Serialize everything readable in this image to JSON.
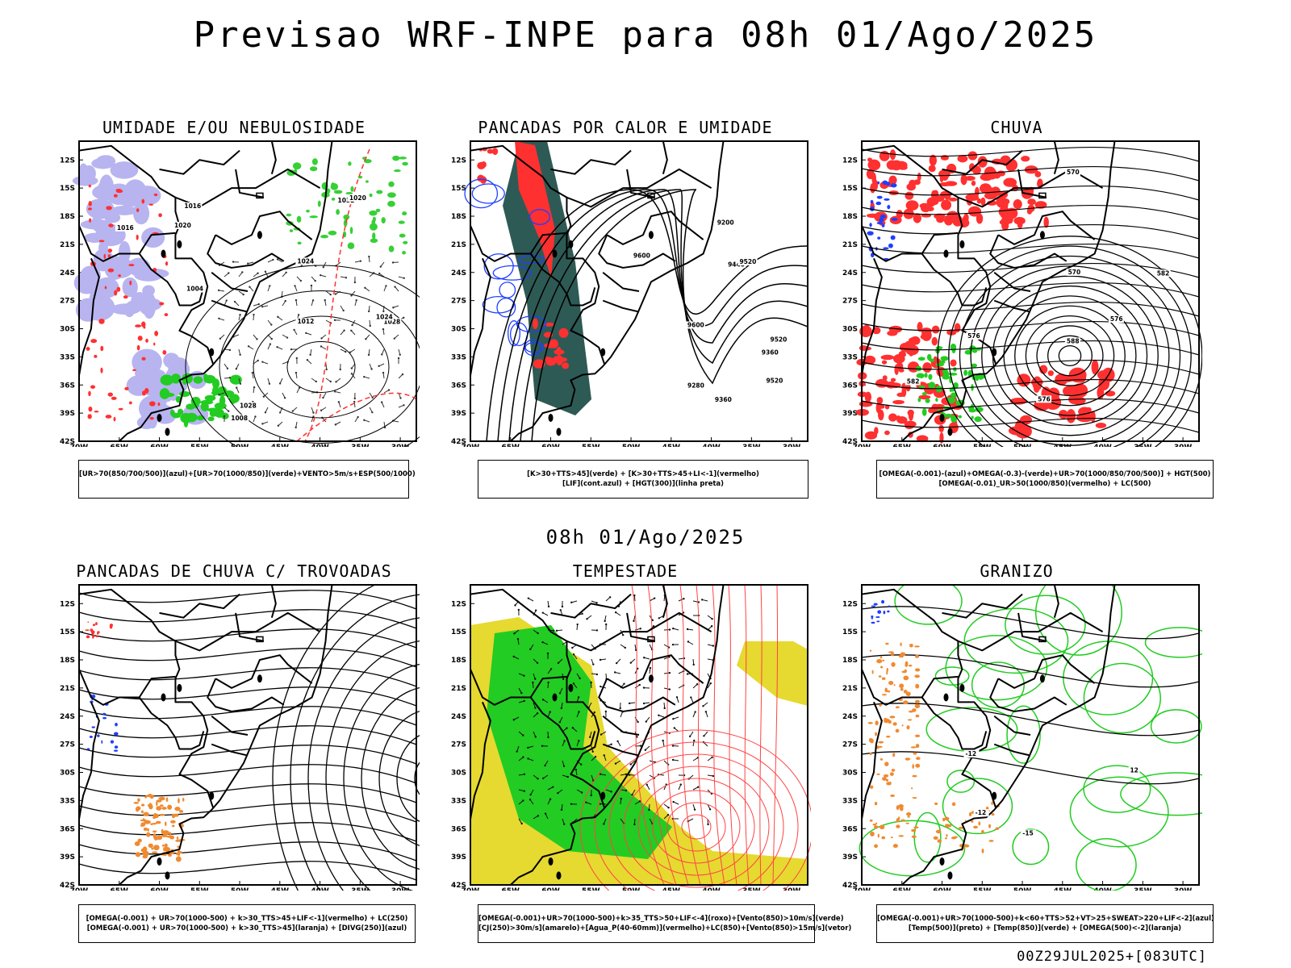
{
  "title": "Previsao WRF-INPE  para 08h 01/Ago/2025",
  "mid_date": "08h 01/Ago/2025",
  "footer": "00Z29JUL2025+[083UTC]",
  "lat_labels": [
    "12S",
    "15S",
    "18S",
    "21S",
    "24S",
    "27S",
    "30S",
    "33S",
    "36S",
    "39S",
    "42S"
  ],
  "lon_labels": [
    "70W",
    "65W",
    "60W",
    "55W",
    "50W",
    "45W",
    "40W",
    "35W",
    "30W"
  ],
  "panels": [
    {
      "title": "UMIDADE E/OU NEBULOSIDADE",
      "legend": [
        "[UR>70(850/700/500)](azul)+[UR>70(1000/850)](verde)+VENTO>5m/s+ESP(500/1000)"
      ],
      "contour_labels": [
        "1016",
        "1020",
        "1024",
        "1028",
        "1032",
        "1008",
        "1012",
        "1004",
        "1020",
        "1028",
        "1024",
        "1016"
      ]
    },
    {
      "title": "PANCADAS POR CALOR E UMIDADE",
      "legend": [
        "[K>30+TTS>45](verde) + [K>30+TTS>45+LI<-1](vermelho)",
        "[LIF](cont.azul) + [HGT(300)](linha preta)"
      ],
      "contour_labels": [
        "9600",
        "9520",
        "9440",
        "9360",
        "9280",
        "9200",
        "9520",
        "9600",
        "9520",
        "9360"
      ]
    },
    {
      "title": "CHUVA",
      "legend": [
        "[OMEGA(-0.001)-(azul)+OMEGA(-0.3)-(verde)+UR>70(1000/850/700/500)] + HGT(500)",
        "[OMEGA(-0.01)_UR>50(1000/850)(vermelho) + LC(500)"
      ],
      "contour_labels": [
        "588",
        "582",
        "576",
        "570",
        "582",
        "576",
        "570",
        "576"
      ]
    },
    {
      "title": "PANCADAS DE CHUVA C/ TROVOADAS",
      "legend": [
        "[OMEGA(-0.001) + UR>70(1000-500) + k>30_TTS>45+LIF<-1](vermelho) + LC(250)",
        "[OMEGA(-0.001) + UR>70(1000-500) + k>30_TTS>45](laranja) + [DIVG(250)](azul)"
      ],
      "contour_labels": []
    },
    {
      "title": "TEMPESTADE",
      "legend": [
        "[OMEGA(-0.001)+UR>70(1000-500)+k>35_TTS>50+LIF<-4](roxo)+[Vento(850)>10m/s](verde)",
        "[CJ(250)>30m/s](amarelo)+[Agua_P(40-60mm)](vermelho)+LC(850)+[Vento(850)>15m/s](vetor)"
      ],
      "contour_labels": []
    },
    {
      "title": "GRANIZO",
      "legend": [
        "[OMEGA(-0.001)+UR>70(1000-500)+k<60+TTS>52+VT>25+SWEAT>220+LIF<-2](azul)",
        "[Temp(500)](preto) + [Temp(850)](verde) + [OMEGA(500)<-2](laranja)"
      ],
      "contour_labels": [
        "-12",
        "-15",
        "-12",
        "12"
      ]
    }
  ],
  "colors": {
    "red": "#ff3030",
    "green": "#22cc22",
    "blue": "#1f3fff",
    "lavender": "#b8b4f0",
    "darkteal": "#2e5a55",
    "yellow": "#e6d930",
    "orange": "#f08a30",
    "black": "#000000"
  }
}
